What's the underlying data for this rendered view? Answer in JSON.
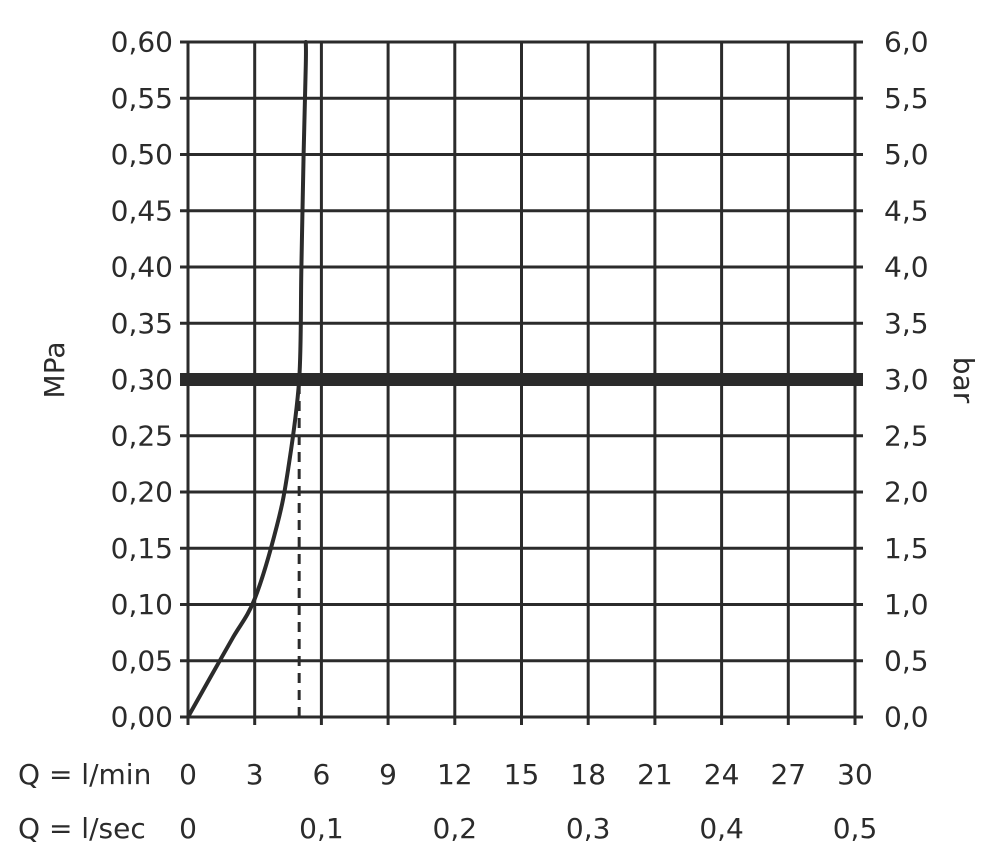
{
  "chart_data": {
    "type": "line",
    "title": "",
    "left_axis": {
      "label": "MPa",
      "ticks": [
        "0,00",
        "0,05",
        "0,10",
        "0,15",
        "0,20",
        "0,25",
        "0,30",
        "0,35",
        "0,40",
        "0,45",
        "0,50",
        "0,55",
        "0,60"
      ],
      "ylim": [
        0,
        0.6
      ]
    },
    "right_axis": {
      "label": "bar",
      "ticks": [
        "0,0",
        "0,5",
        "1,0",
        "1,5",
        "2,0",
        "2,5",
        "3,0",
        "3,5",
        "4,0",
        "4,5",
        "5,0",
        "5,5",
        "6,0"
      ],
      "ylim": [
        0,
        6
      ]
    },
    "x_axis_lmin": {
      "label": "Q = l/min",
      "ticks": [
        "0",
        "3",
        "6",
        "9",
        "12",
        "15",
        "18",
        "21",
        "24",
        "27",
        "30"
      ],
      "xlim": [
        0,
        30
      ]
    },
    "x_axis_lsec": {
      "label": "Q = l/sec",
      "ticks": [
        "0",
        "0,1",
        "0,2",
        "0,3",
        "0,4",
        "0,5"
      ]
    },
    "grid": true,
    "series": [
      {
        "x": [
          0,
          1,
          2,
          3,
          4,
          4.5,
          5.0,
          5.1,
          5.2,
          5.3,
          5.3
        ],
        "y": [
          0,
          0.035,
          0.07,
          0.105,
          0.17,
          0.22,
          0.3,
          0.4,
          0.5,
          0.58,
          0.6
        ]
      }
    ],
    "reference_line": {
      "y": 0.3,
      "style": "thick"
    },
    "marker_line": {
      "x": 5.0,
      "y_from": 0,
      "y_to": 0.3,
      "style": "dashed"
    }
  }
}
